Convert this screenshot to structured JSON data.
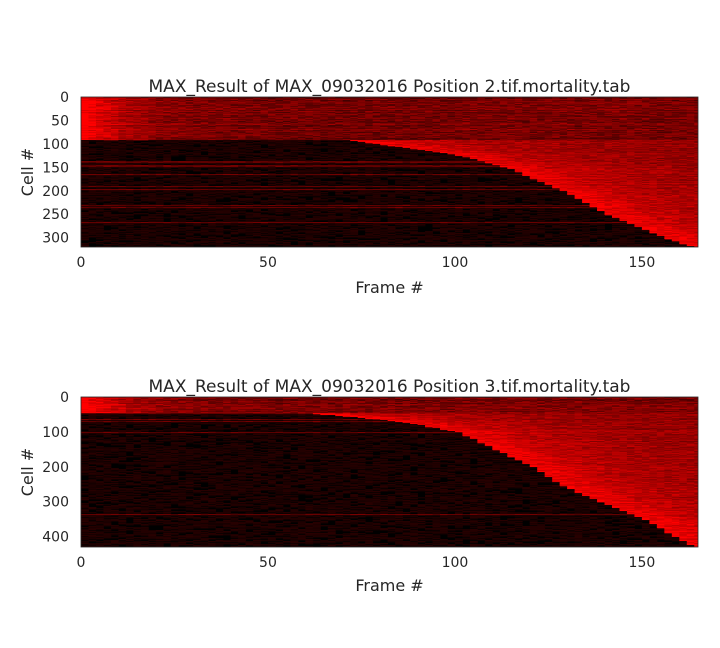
{
  "chart_data": [
    {
      "type": "heatmap",
      "title": "MAX_Result of MAX_09032016 Position 2.tif.mortality.tab",
      "xlabel": "Frame #",
      "ylabel": "Cell #",
      "xlim": [
        0,
        165
      ],
      "ylim": [
        0,
        320
      ],
      "y_inverted": true,
      "x_ticks": [
        0,
        50,
        100,
        150
      ],
      "y_ticks": [
        0,
        50,
        100,
        150,
        200,
        250,
        300
      ],
      "colormap": [
        "#000000",
        "#ff0000"
      ],
      "early_bright_rows": 90,
      "death_curve": [
        {
          "cell": 90,
          "frame": 70
        },
        {
          "cell": 100,
          "frame": 78
        },
        {
          "cell": 120,
          "frame": 98
        },
        {
          "cell": 150,
          "frame": 113
        },
        {
          "cell": 180,
          "frame": 122
        },
        {
          "cell": 200,
          "frame": 128
        },
        {
          "cell": 250,
          "frame": 140
        },
        {
          "cell": 290,
          "frame": 152
        },
        {
          "cell": 320,
          "frame": 163
        }
      ]
    },
    {
      "type": "heatmap",
      "title": "MAX_Result of MAX_09032016 Position 3.tif.mortality.tab",
      "xlabel": "Frame #",
      "ylabel": "Cell #",
      "xlim": [
        0,
        165
      ],
      "ylim": [
        0,
        430
      ],
      "y_inverted": true,
      "x_ticks": [
        0,
        50,
        100,
        150
      ],
      "y_ticks": [
        0,
        100,
        200,
        300,
        400
      ],
      "colormap": [
        "#000000",
        "#ff0000"
      ],
      "early_bright_rows": 45,
      "death_curve": [
        {
          "cell": 45,
          "frame": 60
        },
        {
          "cell": 70,
          "frame": 85
        },
        {
          "cell": 100,
          "frame": 100
        },
        {
          "cell": 150,
          "frame": 110
        },
        {
          "cell": 200,
          "frame": 120
        },
        {
          "cell": 250,
          "frame": 127
        },
        {
          "cell": 300,
          "frame": 138
        },
        {
          "cell": 350,
          "frame": 150
        },
        {
          "cell": 400,
          "frame": 158
        },
        {
          "cell": 430,
          "frame": 163
        }
      ]
    }
  ]
}
